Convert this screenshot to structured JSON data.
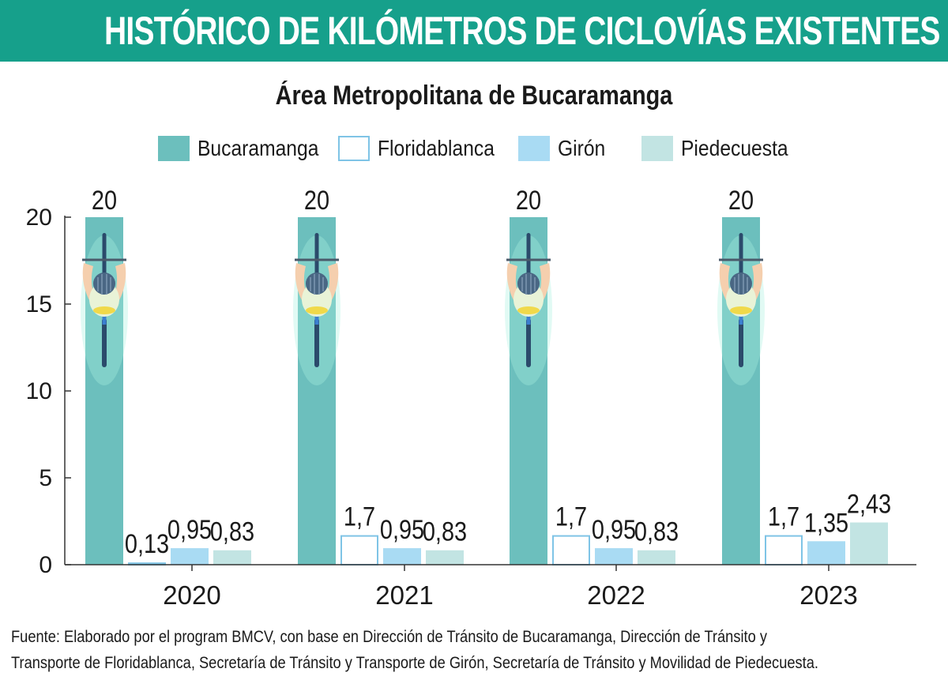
{
  "header": {
    "title": "HISTÓRICO DE KILÓMETROS DE CICLOVÍAS EXISTENTES",
    "subtitle": "Área Metropolitana de Bucaramanga"
  },
  "colors": {
    "banner": "#16a08b",
    "Bucaramanga": "#6cbfbd",
    "Floridablanca": "#ffffff",
    "Floridablanca_border": "#7fc4e6",
    "Girón": "#a9dbf3",
    "Piedecuesta": "#c2e4e3"
  },
  "chart_data": {
    "type": "bar",
    "categories": [
      "2020",
      "2021",
      "2022",
      "2023"
    ],
    "series": [
      {
        "name": "Bucaramanga",
        "values": [
          20,
          20,
          20,
          20
        ],
        "labels": [
          "20",
          "20",
          "20",
          "20"
        ]
      },
      {
        "name": "Floridablanca",
        "values": [
          0.13,
          1.7,
          1.7,
          1.7
        ],
        "labels": [
          "0,13",
          "1,7",
          "1,7",
          "1,7"
        ]
      },
      {
        "name": "Girón",
        "values": [
          0.95,
          0.95,
          0.95,
          1.35
        ],
        "labels": [
          "0,95",
          "0,95",
          "0,95",
          "1,35"
        ]
      },
      {
        "name": "Piedecuesta",
        "values": [
          0.83,
          0.83,
          0.83,
          2.43
        ],
        "labels": [
          "0,83",
          "0,83",
          "0,83",
          "2,43"
        ]
      }
    ],
    "ylim": [
      0,
      20
    ],
    "yticks": [
      "0",
      "5",
      "10",
      "15",
      "20"
    ],
    "legend": "top",
    "grid": false,
    "bar_icon": "cyclist-icon"
  },
  "source": {
    "line1": "Fuente: Elaborado por el program BMCV, con base en Dirección de Tránsito de Bucaramanga, Dirección de Tránsito y",
    "line2": "Transporte de Floridablanca, Secretaría de Tránsito y Transporte de Girón, Secretaría de Tránsito y Movilidad de Piedecuesta."
  }
}
